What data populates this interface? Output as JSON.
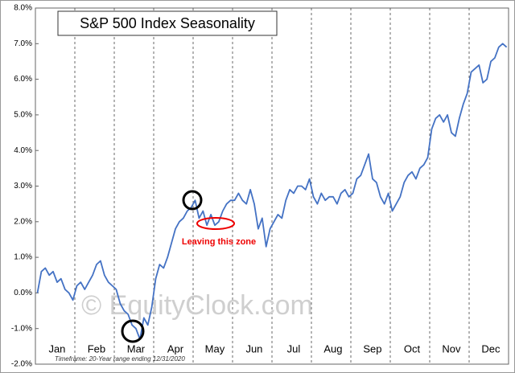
{
  "chart_data": {
    "type": "line",
    "title": "S&P 500 Index Seasonality",
    "annotations": [
      "Leaving this zone",
      "Timeframe: 20-Year range ending 12/31/2020",
      "© EquityClock.com"
    ],
    "categories": [
      null,
      null,
      null,
      null,
      null,
      "Jan",
      null,
      null,
      null,
      null,
      null,
      null,
      null,
      null,
      null,
      "Feb",
      null,
      null,
      null,
      null,
      null,
      null,
      null,
      null,
      null,
      "Mar",
      null,
      null,
      null,
      null,
      null,
      null,
      null,
      null,
      null,
      "Apr",
      null,
      null,
      null,
      null,
      null,
      null,
      null,
      null,
      null,
      "May",
      null,
      null,
      null,
      null,
      null,
      null,
      null,
      null,
      null,
      "Jun",
      null,
      null,
      null,
      null,
      null,
      null,
      null,
      null,
      null,
      "Jul",
      null,
      null,
      null,
      null,
      null,
      null,
      null,
      null,
      null,
      "Aug",
      null,
      null,
      null,
      null,
      null,
      null,
      null,
      null,
      null,
      "Sep",
      null,
      null,
      null,
      null,
      null,
      null,
      null,
      null,
      null,
      "Oct",
      null,
      null,
      null,
      null,
      null,
      null,
      null,
      null,
      null,
      "Nov",
      null,
      null,
      null,
      null,
      null,
      null,
      null,
      null,
      null,
      "Dec",
      null,
      null,
      null,
      null
    ],
    "series": [
      {
        "color": "#4472c4",
        "values": [
          0.0,
          0.6,
          0.7,
          0.5,
          0.6,
          0.3,
          0.4,
          0.1,
          0.0,
          -0.2,
          0.2,
          0.3,
          0.1,
          0.3,
          0.5,
          0.8,
          0.9,
          0.5,
          0.3,
          0.2,
          0.1,
          -0.3,
          -0.5,
          -0.6,
          -0.9,
          -1.0,
          -1.3,
          -0.7,
          -0.9,
          -0.4,
          0.4,
          0.8,
          0.7,
          1.0,
          1.4,
          1.8,
          2.0,
          2.1,
          2.3,
          2.4,
          2.6,
          2.1,
          2.3,
          1.9,
          2.2,
          1.9,
          2.0,
          2.3,
          2.5,
          2.6,
          2.6,
          2.8,
          2.6,
          2.5,
          2.9,
          2.5,
          1.8,
          2.1,
          1.3,
          1.8,
          2.0,
          2.2,
          2.1,
          2.6,
          2.9,
          2.8,
          3.0,
          3.0,
          2.9,
          3.2,
          2.7,
          2.5,
          2.8,
          2.6,
          2.7,
          2.7,
          2.5,
          2.8,
          2.9,
          2.7,
          2.8,
          3.2,
          3.3,
          3.6,
          3.9,
          3.2,
          3.1,
          2.7,
          2.5,
          2.8,
          2.3,
          2.5,
          2.7,
          3.1,
          3.3,
          3.4,
          3.2,
          3.5,
          3.6,
          3.8,
          4.6,
          4.9,
          5.0,
          4.8,
          5.0,
          4.5,
          4.4,
          4.9,
          5.3,
          5.6,
          6.2,
          6.3,
          6.4,
          5.9,
          6.0,
          6.5,
          6.6,
          6.9,
          7.0,
          6.9
        ]
      }
    ],
    "ylim": [
      -2,
      8
    ],
    "yticks": [
      {
        "value": -2,
        "label": "-2.0%"
      },
      {
        "value": -1,
        "label": "-1.0%"
      },
      {
        "value": 0,
        "label": "0.0%"
      },
      {
        "value": 1,
        "label": "1.0%"
      },
      {
        "value": 2,
        "label": "2.0%"
      },
      {
        "value": 3,
        "label": "3.0%"
      },
      {
        "value": 4,
        "label": "4.0%"
      },
      {
        "value": 5,
        "label": "5.0%"
      },
      {
        "value": 6,
        "label": "6.0%"
      },
      {
        "value": 7,
        "label": "7.0%"
      },
      {
        "value": 8,
        "label": "8.0%"
      }
    ]
  }
}
